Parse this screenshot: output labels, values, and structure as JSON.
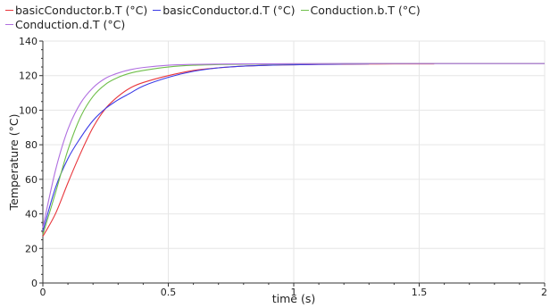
{
  "chart_data": {
    "type": "line",
    "xlabel": "time (s)",
    "ylabel": "Temperature (°C)",
    "xlim": [
      0,
      2
    ],
    "ylim": [
      0,
      140
    ],
    "x_ticks": [
      0,
      0.5,
      1,
      1.5,
      2
    ],
    "x_tick_labels": [
      "0",
      "0.5",
      "1",
      "1.5",
      "2"
    ],
    "y_ticks": [
      0,
      20,
      40,
      60,
      80,
      100,
      120,
      140
    ],
    "y_tick_labels": [
      "0",
      "20",
      "40",
      "60",
      "80",
      "100",
      "120",
      "140"
    ],
    "grid": true,
    "legend_position": "top",
    "series": [
      {
        "name": "basicConductor.b.T (°C)",
        "color": "#e8353b",
        "x": [
          0,
          0.05,
          0.1,
          0.15,
          0.2,
          0.25,
          0.3,
          0.35,
          0.4,
          0.5,
          0.6,
          0.7,
          0.8,
          0.9,
          1.0,
          1.1,
          1.2,
          1.3,
          1.4,
          1.56
        ],
        "y": [
          27,
          40,
          58,
          75,
          90,
          101,
          108,
          113,
          116,
          120,
          123,
          124.5,
          125.5,
          126,
          126.3,
          126.5,
          126.6,
          126.7,
          126.8,
          126.8
        ]
      },
      {
        "name": "basicConductor.d.T (°C)",
        "color": "#3a3ae6",
        "x": [
          0,
          0.05,
          0.1,
          0.15,
          0.2,
          0.25,
          0.3,
          0.35,
          0.4,
          0.5,
          0.6,
          0.7,
          0.8,
          0.9,
          1.0,
          1.1,
          1.2,
          1.3
        ],
        "y": [
          30,
          55,
          72,
          84,
          94,
          101,
          106,
          110,
          114,
          119,
          122.5,
          124.5,
          125.5,
          126,
          126.3,
          126.5,
          126.7,
          126.8
        ]
      },
      {
        "name": "Conduction.b.T (°C)",
        "color": "#6fbf4a",
        "x": [
          0,
          0.05,
          0.1,
          0.15,
          0.2,
          0.25,
          0.3,
          0.35,
          0.4,
          0.5,
          0.6,
          0.7,
          0.8,
          1.0,
          1.2,
          1.5,
          2.0
        ],
        "y": [
          28,
          52,
          77,
          96,
          108,
          115,
          119,
          121.5,
          123,
          125,
          126,
          126.4,
          126.6,
          126.8,
          126.9,
          127,
          127
        ]
      },
      {
        "name": "Conduction.d.T (°C)",
        "color": "#b06fe0",
        "x": [
          0,
          0.05,
          0.1,
          0.15,
          0.2,
          0.25,
          0.3,
          0.35,
          0.4,
          0.5,
          0.6,
          0.7,
          0.8,
          1.0,
          1.2,
          1.5,
          2.0
        ],
        "y": [
          32,
          65,
          89,
          104,
          113,
          118.5,
          121.5,
          123.5,
          124.7,
          126,
          126.5,
          126.7,
          126.8,
          126.9,
          127,
          127,
          127
        ]
      }
    ]
  }
}
